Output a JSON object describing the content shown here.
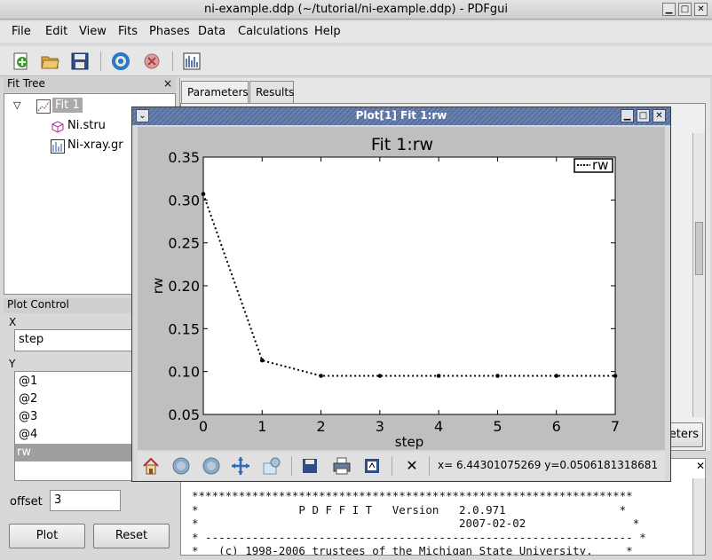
{
  "window": {
    "title": "ni-example.ddp (~/tutorial/ni-example.ddp) - PDFgui"
  },
  "menu": [
    "File",
    "Edit",
    "View",
    "Fits",
    "Phases",
    "Data",
    "Calculations",
    "Help"
  ],
  "toolbar": {
    "icons": [
      "new-fit-icon",
      "open-folder-icon",
      "save-icon",
      "run-icon",
      "stop-icon",
      "plot-icon"
    ]
  },
  "fit_tree": {
    "title": "Fit Tree",
    "close": "×",
    "items": [
      {
        "label": "Fit 1",
        "icon": "fit-icon"
      },
      {
        "label": "Ni.stru",
        "icon": "structure-icon"
      },
      {
        "label": "Ni-xray.gr",
        "icon": "data-icon"
      }
    ]
  },
  "plot_control": {
    "title": "Plot Control",
    "x_label": "X",
    "x_value": "step",
    "y_label": "Y",
    "y_items": [
      "@1",
      "@2",
      "@3",
      "@4",
      "rw"
    ],
    "selected_y": "rw",
    "offset_label": "offset",
    "offset_value": "3",
    "plot_button": "Plot",
    "reset_button": "Reset"
  },
  "tabs": [
    "Parameters",
    "Results"
  ],
  "right_button_partial": "eters",
  "console": {
    "lines": [
      "******************************************************************",
      "*               P D F F I T   Version   2.0.971                 *",
      "*                                       2007-02-02                *",
      "* ---------------------------------------------------------------- *",
      "*   (c) 1998-2006 trustees of the Michigan State University.     *"
    ]
  },
  "plot_window": {
    "title": "Plot[1]  Fit 1:rw",
    "coord_readout": "x= 6.44301075269  y=0.0506181318681"
  },
  "chart_data": {
    "type": "line",
    "title": "Fit 1:rw",
    "xlabel": "step",
    "ylabel": "rw",
    "xlim": [
      0,
      7
    ],
    "ylim": [
      0.05,
      0.35
    ],
    "xticks": [
      "0",
      "1",
      "2",
      "3",
      "4",
      "5",
      "6",
      "7"
    ],
    "yticks": [
      "0.05",
      "0.10",
      "0.15",
      "0.20",
      "0.25",
      "0.30",
      "0.35"
    ],
    "legend": "top-right",
    "series": [
      {
        "name": "rw",
        "x": [
          0,
          1,
          2,
          3,
          4,
          5,
          6,
          7
        ],
        "y": [
          0.307,
          0.113,
          0.095,
          0.095,
          0.095,
          0.095,
          0.095,
          0.095
        ],
        "color": "#000000",
        "style": "dotted"
      }
    ]
  }
}
